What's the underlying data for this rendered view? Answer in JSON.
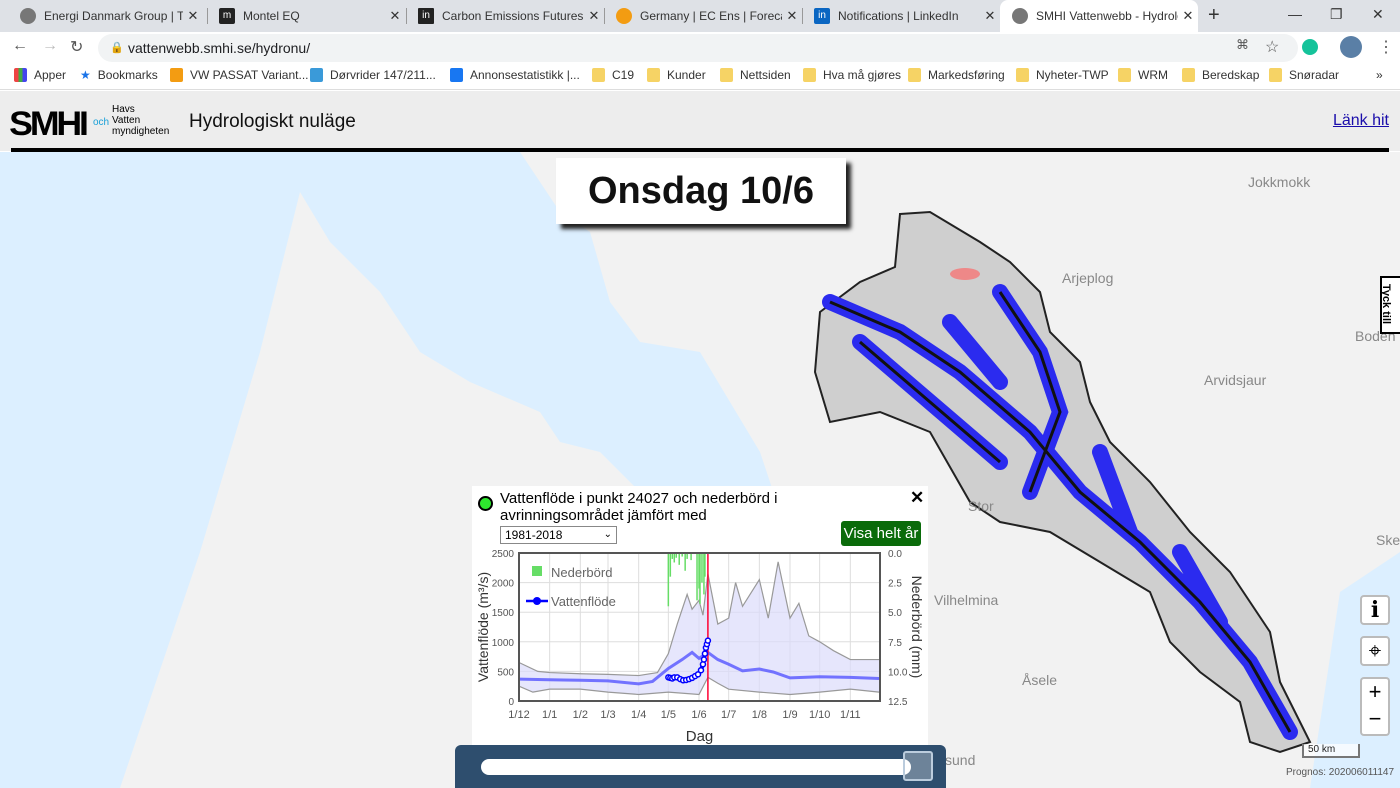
{
  "browser": {
    "tabs": [
      {
        "title": "Energi Danmark Group | Toge",
        "icon": "globe-icon",
        "active": false
      },
      {
        "title": "Montel EQ",
        "icon": "montel-icon",
        "active": false
      },
      {
        "title": "Carbon Emissions Futures Pri",
        "icon": "investing-icon",
        "active": false
      },
      {
        "title": "Germany | EC Ens | Forecast E",
        "icon": "energy-icon",
        "active": false
      },
      {
        "title": "Notifications | LinkedIn",
        "icon": "linkedin-icon",
        "active": false
      },
      {
        "title": "SMHI Vattenwebb - Hydrolog",
        "icon": "globe-icon",
        "active": true
      }
    ],
    "url": "vattenwebb.smhi.se/hydronu/",
    "bookmarks": [
      "Apper",
      "Bookmarks",
      "VW PASSAT Variant...",
      "Dørvrider 147/211...",
      "Annonsestatistikk |...",
      "C19",
      "Kunder",
      "Nettsiden",
      "Hva må gjøres",
      "Markedsføring",
      "Nyheter-TWP",
      "WRM",
      "Beredskap",
      "Snøradar"
    ],
    "more": "»"
  },
  "header": {
    "logo": "SMHI",
    "partner_och": "och",
    "partner": [
      "Havs",
      "Vatten",
      "myndigheten"
    ],
    "title": "Hydrologiskt nuläge",
    "link": "Länk hit"
  },
  "map": {
    "date": "Onsdag 10/6",
    "places": [
      "Jokkmokk",
      "Arjeplog",
      "Boden",
      "Arvidsjaur",
      "Vilhelmina",
      "Åsele",
      "Stor",
      "Ske",
      "sund"
    ],
    "feedback": "Tyck till",
    "buttons": {
      "info": "i",
      "locate": "⌖",
      "zoom_in": "+",
      "zoom_out": "−"
    },
    "scale": "50 km",
    "prognos": "Prognos: 202006011147",
    "timeline_position": 0.98
  },
  "popup": {
    "title": "Vattenflöde i punkt 24027 och nederbörd i avrinningsområdet jämfört med",
    "period": "1981-2018",
    "show_year": "Visa helt år",
    "close": "✕",
    "status_color": "#2ee82e"
  },
  "chart_data": {
    "type": "line",
    "xlabel": "Dag",
    "ylabel": "Vattenflöde (m³/s)",
    "y2label": "Nederbörd (mm)",
    "xticks": [
      "1/12",
      "1/1",
      "1/2",
      "1/3",
      "1/4",
      "1/5",
      "1/6",
      "1/7",
      "1/8",
      "1/9",
      "1/10",
      "1/11"
    ],
    "xlim": [
      "1/12",
      "30/11"
    ],
    "ylim": [
      0,
      2500
    ],
    "yticks": [
      0,
      500,
      1000,
      1500,
      2000,
      2500
    ],
    "y2lim": [
      0.0,
      12.5
    ],
    "y2ticks": [
      "0.0",
      "2.5",
      "5.0",
      "7.5",
      "10.0",
      "12.5"
    ],
    "y2_inverted": true,
    "grid": true,
    "current_date": "10/6",
    "legend": {
      "position": "top-left",
      "items": [
        "Nederbörd",
        "Vattenflöde"
      ]
    },
    "series": [
      {
        "name": "Vattenflöde",
        "color": "#0000ff",
        "points": [
          [
            "1/5",
            400
          ],
          [
            "3/5",
            390
          ],
          [
            "5/5",
            380
          ],
          [
            "7/5",
            400
          ],
          [
            "10/5",
            400
          ],
          [
            "13/5",
            370
          ],
          [
            "16/5",
            350
          ],
          [
            "19/5",
            355
          ],
          [
            "22/5",
            370
          ],
          [
            "25/5",
            390
          ],
          [
            "28/5",
            420
          ],
          [
            "31/5",
            450
          ],
          [
            "3/6",
            520
          ],
          [
            "5/6",
            620
          ],
          [
            "6/6",
            700
          ],
          [
            "7/6",
            800
          ],
          [
            "8/6",
            900
          ],
          [
            "9/6",
            960
          ],
          [
            "10/6",
            1020
          ]
        ]
      },
      {
        "role": "median",
        "color": "#5555ff",
        "points": [
          [
            "1/12",
            370
          ],
          [
            "1/1",
            360
          ],
          [
            "15/1",
            355
          ],
          [
            "1/2",
            350
          ],
          [
            "1/3",
            340
          ],
          [
            "1/4",
            290
          ],
          [
            "15/4",
            330
          ],
          [
            "1/5",
            550
          ],
          [
            "15/5",
            700
          ],
          [
            "25/5",
            820
          ],
          [
            "1/6",
            720
          ],
          [
            "10/6",
            820
          ],
          [
            "20/6",
            700
          ],
          [
            "1/7",
            620
          ],
          [
            "15/7",
            510
          ],
          [
            "1/8",
            540
          ],
          [
            "15/8",
            490
          ],
          [
            "1/9",
            390
          ],
          [
            "1/10",
            410
          ],
          [
            "1/11",
            400
          ],
          [
            "30/11",
            380
          ]
        ]
      },
      {
        "role": "max",
        "color": "#999999",
        "points": [
          [
            "1/12",
            650
          ],
          [
            "20/12",
            500
          ],
          [
            "1/1",
            480
          ],
          [
            "1/2",
            460
          ],
          [
            "1/3",
            450
          ],
          [
            "1/4",
            430
          ],
          [
            "20/4",
            480
          ],
          [
            "1/5",
            800
          ],
          [
            "10/5",
            1300
          ],
          [
            "20/5",
            1800
          ],
          [
            "25/5",
            1550
          ],
          [
            "1/6",
            1700
          ],
          [
            "5/6",
            1450
          ],
          [
            "10/6",
            2150
          ],
          [
            "20/6",
            1300
          ],
          [
            "1/7",
            1400
          ],
          [
            "8/7",
            2000
          ],
          [
            "15/7",
            1600
          ],
          [
            "1/8",
            2050
          ],
          [
            "10/8",
            1400
          ],
          [
            "20/8",
            2350
          ],
          [
            "1/9",
            1400
          ],
          [
            "10/9",
            1650
          ],
          [
            "20/9",
            1100
          ],
          [
            "1/10",
            1000
          ],
          [
            "15/10",
            850
          ],
          [
            "1/11",
            700
          ],
          [
            "30/11",
            700
          ]
        ]
      },
      {
        "role": "min",
        "color": "#999999",
        "points": [
          [
            "1/12",
            250
          ],
          [
            "15/12",
            150
          ],
          [
            "1/1",
            200
          ],
          [
            "1/2",
            200
          ],
          [
            "1/3",
            150
          ],
          [
            "1/4",
            110
          ],
          [
            "1/5",
            150
          ],
          [
            "1/6",
            110
          ],
          [
            "10/6",
            400
          ],
          [
            "20/6",
            300
          ],
          [
            "1/7",
            200
          ],
          [
            "1/8",
            150
          ],
          [
            "1/9",
            110
          ],
          [
            "1/10",
            150
          ],
          [
            "1/11",
            200
          ],
          [
            "30/11",
            150
          ]
        ]
      }
    ],
    "precipitation": {
      "name": "Nederbörd",
      "color": "#66dd66",
      "points": [
        [
          "1/5",
          4.5
        ],
        [
          "3/5",
          2.0
        ],
        [
          "5/5",
          0.5
        ],
        [
          "7/5",
          0.8
        ],
        [
          "9/5",
          0.4
        ],
        [
          "12/5",
          1.0
        ],
        [
          "15/5",
          0.3
        ],
        [
          "18/5",
          1.5
        ],
        [
          "20/5",
          0.5
        ],
        [
          "24/5",
          0.6
        ],
        [
          "30/5",
          4.0
        ],
        [
          "1/6",
          3.0
        ],
        [
          "2/6",
          4.3
        ],
        [
          "4/6",
          2.5
        ],
        [
          "6/6",
          3.5
        ],
        [
          "7/6",
          2.0
        ]
      ]
    }
  }
}
